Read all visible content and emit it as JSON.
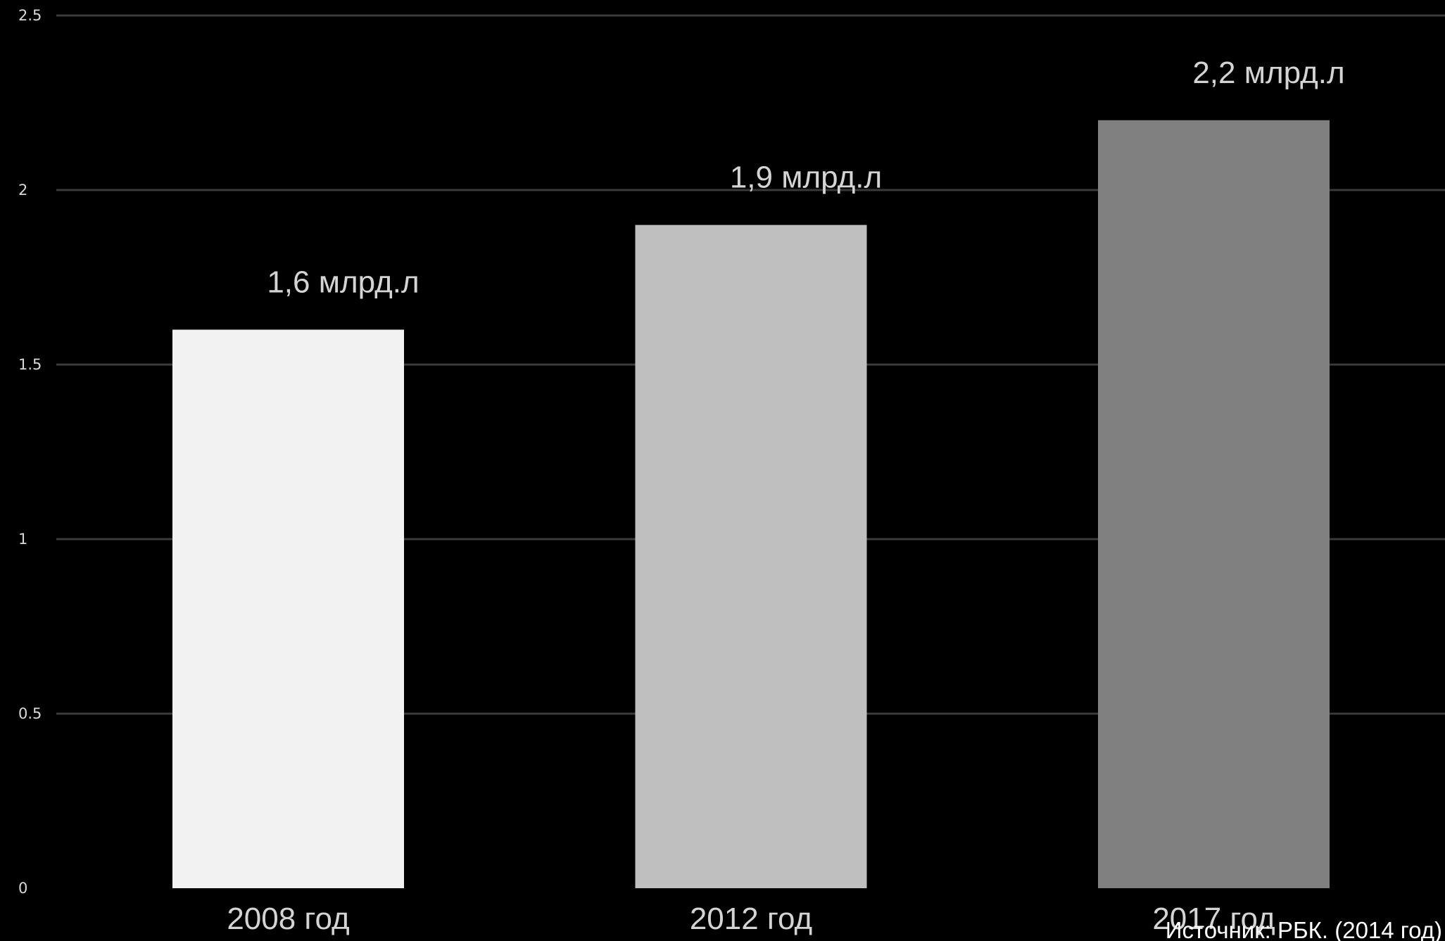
{
  "chart_data": {
    "type": "bar",
    "categories": [
      "2008 год",
      "2012 год",
      "2017 год"
    ],
    "values": [
      1.6,
      1.9,
      2.2
    ],
    "data_labels": [
      "1,6 млрд.л",
      "1,9 млрд.л",
      "2,2 млрд.л"
    ],
    "bar_colors": [
      "#f2f2f2",
      "#bfbfbf",
      "#808080"
    ],
    "ylim": [
      0,
      2.5
    ],
    "yticks": [
      0,
      0.5,
      1,
      1.5,
      2,
      2.5
    ],
    "ytick_labels": [
      "0",
      "0.5",
      "1",
      "1.5",
      "2",
      "2.5"
    ],
    "grid": true,
    "background": "#000000",
    "source": "Источник: РБК. (2014 год)"
  }
}
